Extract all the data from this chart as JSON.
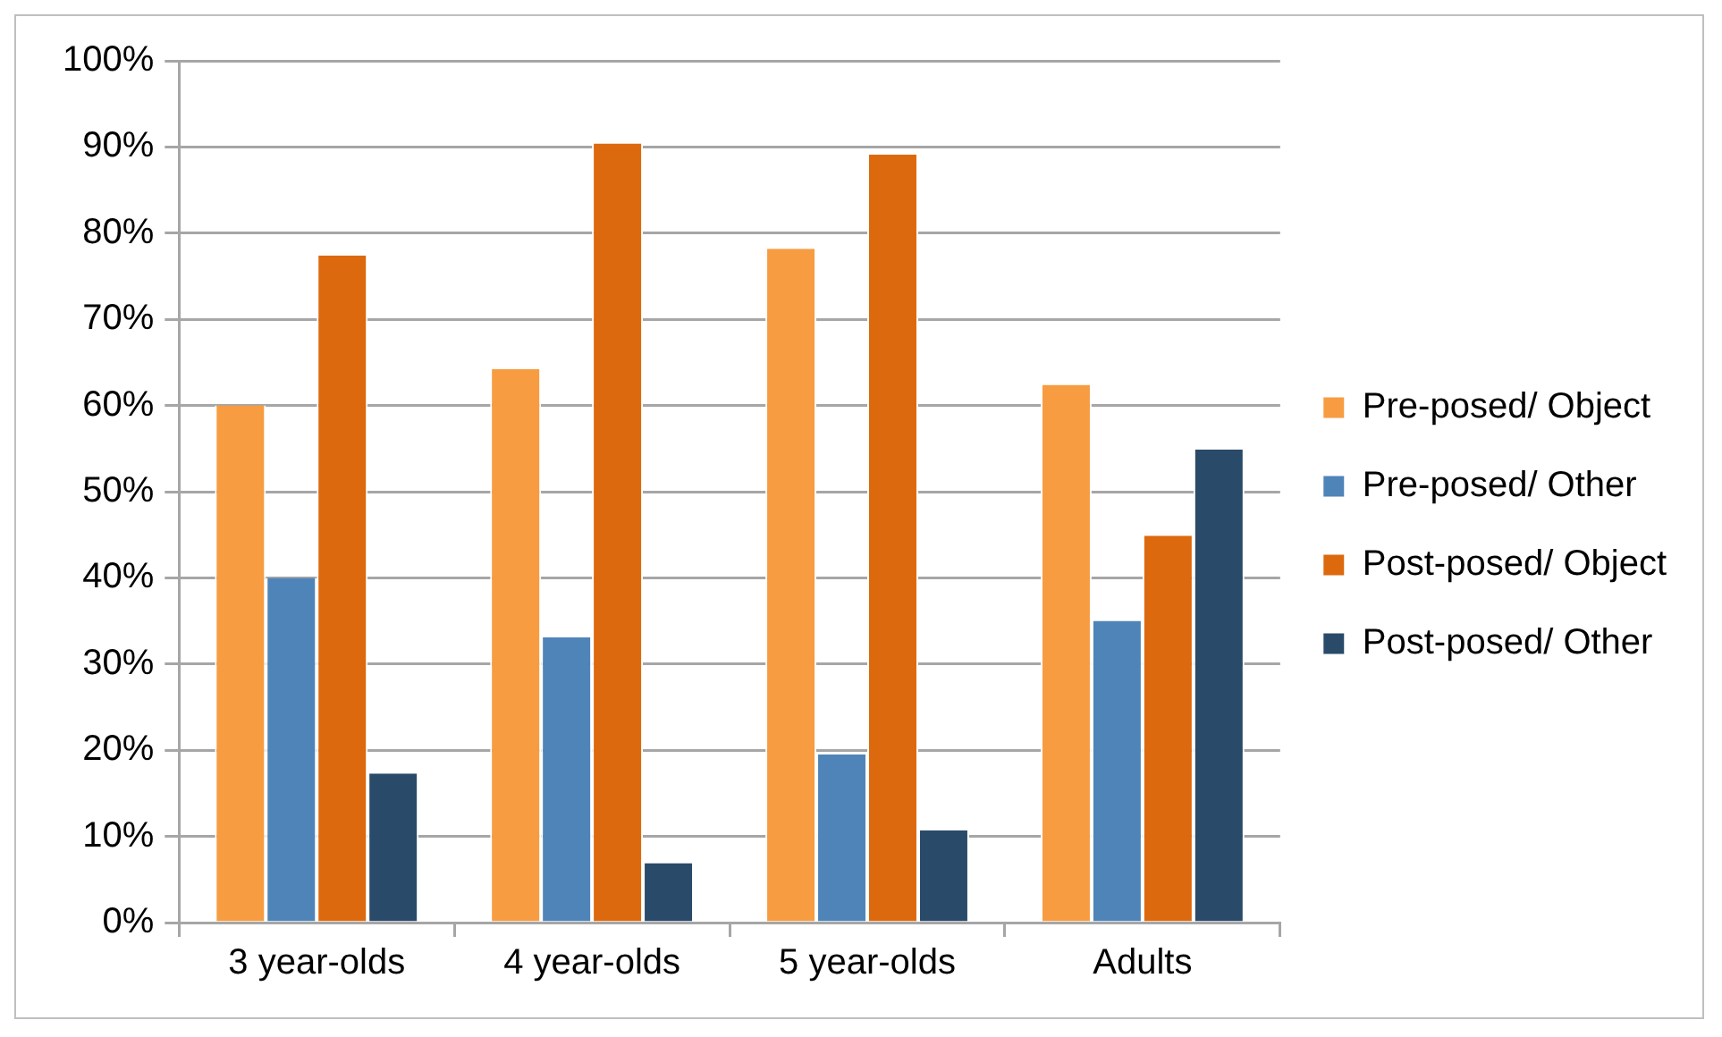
{
  "chart_data": {
    "type": "bar",
    "categories": [
      "3 year-olds",
      "4 year-olds",
      "5 year-olds",
      "Adults"
    ],
    "series": [
      {
        "name": "Pre-posed/ Object",
        "color": "#f79c41",
        "values": [
          60,
          64.2,
          78.2,
          62.4
        ]
      },
      {
        "name": "Pre-posed/ Other",
        "color": "#4f84b9",
        "values": [
          40,
          33.1,
          19.5,
          35
        ]
      },
      {
        "name": "Post-posed/ Object",
        "color": "#dc690e",
        "values": [
          77.4,
          90.4,
          89.1,
          44.9
        ]
      },
      {
        "name": "Post-posed/ Other",
        "color": "#294a69",
        "values": [
          17.3,
          6.9,
          10.7,
          54.9
        ]
      }
    ],
    "ylim": [
      0,
      100
    ],
    "yticks": [
      {
        "value": 0,
        "label": "0%"
      },
      {
        "value": 10,
        "label": "10%"
      },
      {
        "value": 20,
        "label": "20%"
      },
      {
        "value": 30,
        "label": "30%"
      },
      {
        "value": 40,
        "label": "40%"
      },
      {
        "value": 50,
        "label": "50%"
      },
      {
        "value": 60,
        "label": "60%"
      },
      {
        "value": 70,
        "label": "70%"
      },
      {
        "value": 80,
        "label": "80%"
      },
      {
        "value": 90,
        "label": "90%"
      },
      {
        "value": 100,
        "label": "100%"
      }
    ],
    "grid": "y",
    "legend": "right"
  }
}
